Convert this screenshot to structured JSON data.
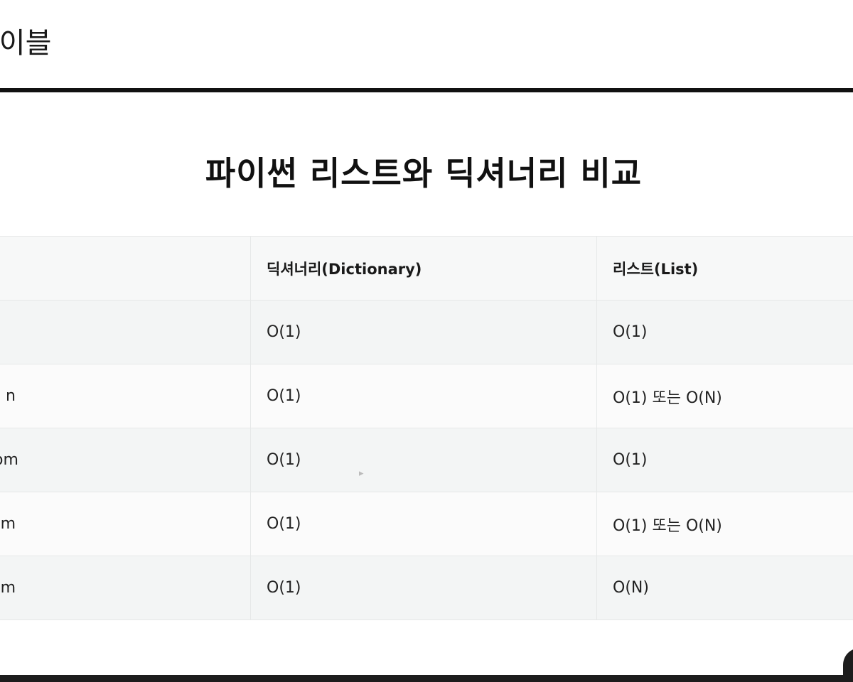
{
  "header": {
    "title": "테이블"
  },
  "document": {
    "title": "파이썬 리스트와 딕셔너리 비교"
  },
  "table": {
    "columns": [
      "",
      "딕셔너리(Dictionary)",
      "리스트(List)"
    ],
    "rows": [
      {
        "op": "",
        "dict": "O(1)",
        "list": "O(1)"
      },
      {
        "op": "n",
        "dict": "O(1)",
        "list": "O(1) 또는 O(N)"
      },
      {
        "op": "om",
        "dict": "O(1)",
        "list": "O(1)"
      },
      {
        "op": "m",
        "dict": "O(1)",
        "list": "O(1) 또는 O(N)"
      },
      {
        "op": "m",
        "dict": "O(1)",
        "list": "O(N)"
      }
    ]
  },
  "colors": {
    "rule": "#111111",
    "header_row_bg": "#f7f8f8",
    "alt_row_bg": "#f3f5f5",
    "border": "#e6e8e8"
  }
}
